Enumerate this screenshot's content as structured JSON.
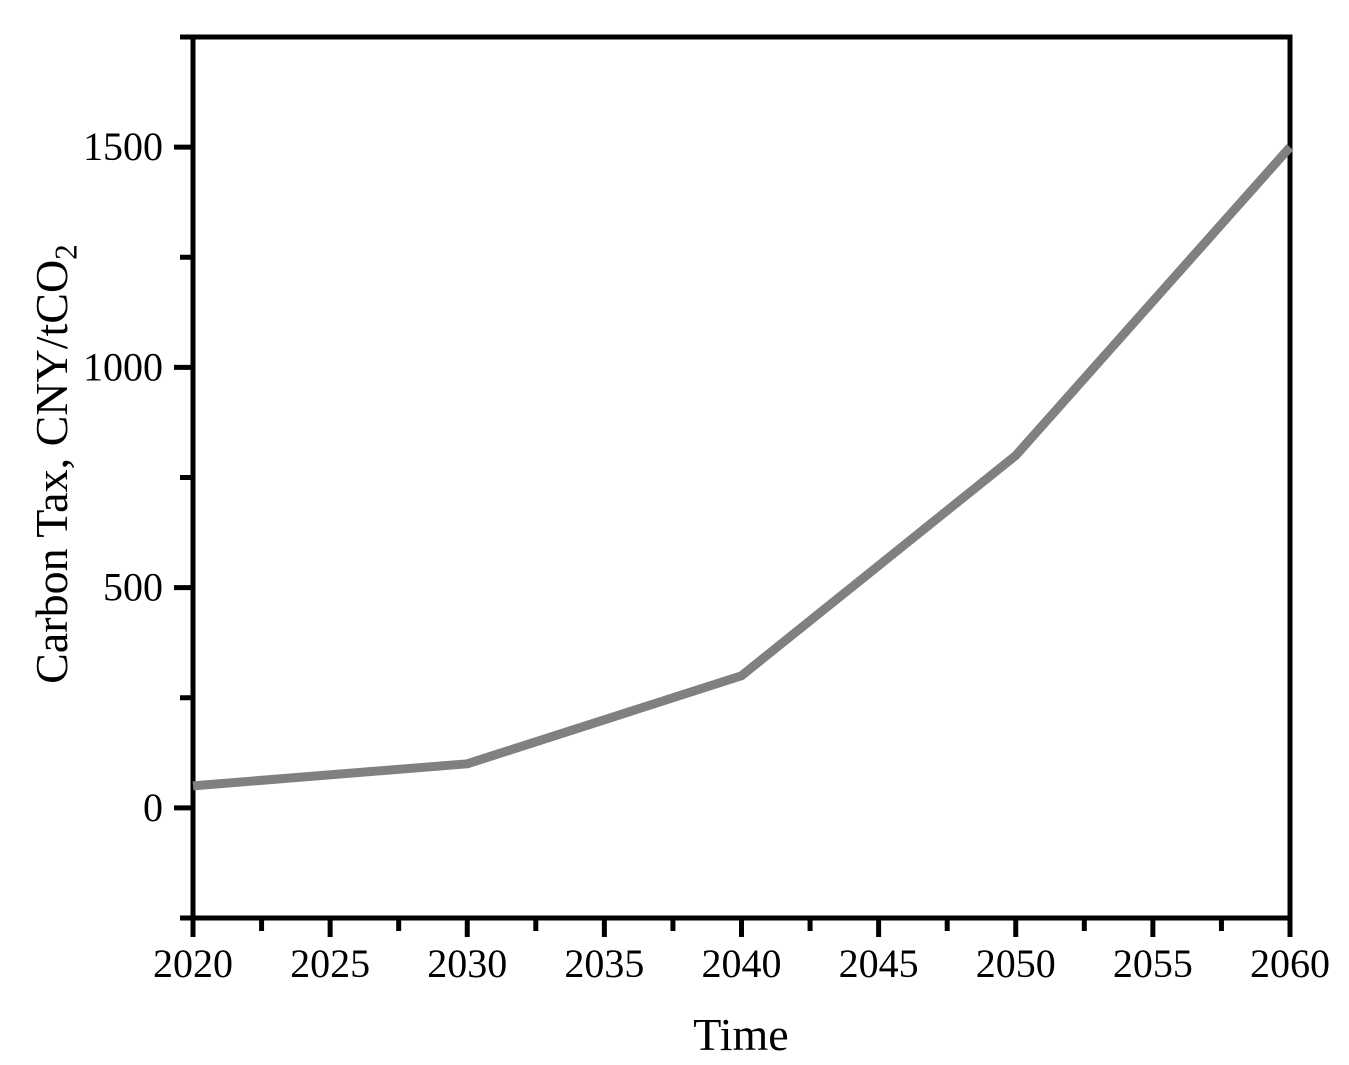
{
  "chart_data": {
    "type": "line",
    "title": "",
    "xlabel": "Time",
    "ylabel": "Carbon Tax, CNY/tCO2",
    "ylabel_main": "Carbon Tax, CNY/tCO",
    "ylabel_sub": "2",
    "x": [
      2020,
      2030,
      2040,
      2050,
      2060
    ],
    "series": [
      {
        "name": "Carbon Tax",
        "values": [
          50,
          100,
          300,
          800,
          1500
        ],
        "color": "#808080",
        "line_width": 9
      }
    ],
    "xlim": [
      2020,
      2060
    ],
    "ylim": [
      -250,
      1750
    ],
    "x_major_ticks": [
      2020,
      2025,
      2030,
      2035,
      2040,
      2045,
      2050,
      2055,
      2060
    ],
    "x_minor_step": 2.5,
    "y_major_ticks": [
      0,
      500,
      1000,
      1500
    ],
    "y_minor_step": 250,
    "grid": false,
    "legend": "none",
    "axis_color": "#000000",
    "background_color": "#ffffff",
    "frame": "full-box",
    "tick_direction": "out"
  }
}
